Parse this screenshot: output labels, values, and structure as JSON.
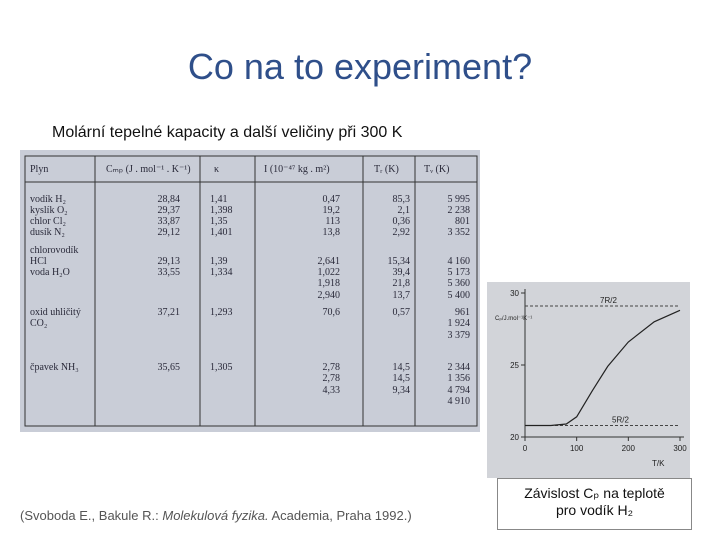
{
  "header": {
    "title": "Co na to experiment?",
    "subtitle": "Molární tepelné kapacity a další veličiny při 300 K"
  },
  "table": {
    "columns": [
      "Plyn",
      "Cₘₚ (J . mol⁻¹ . K⁻¹)",
      "κ",
      "I (10⁻⁴⁷ kg . m²)",
      "Tᵣ (K)",
      "Tᵥ (K)"
    ],
    "rows": [
      [
        [
          "vodík H₂"
        ],
        "28,84",
        "1,41",
        "0,47",
        "85,3",
        "5 995"
      ],
      [
        [
          "kyslík O₂"
        ],
        "29,37",
        "1,398",
        "19,2",
        "2,1",
        "2 238"
      ],
      [
        [
          "chlor Cl₂"
        ],
        "33,87",
        "1,35",
        "113",
        "0,36",
        "801"
      ],
      [
        [
          "dusík N₂"
        ],
        "29,12",
        "1,401",
        "13,8",
        "2,92",
        "3 352"
      ],
      [
        [
          "chlorovodík",
          "HCl"
        ],
        "29,13",
        "1,39",
        "2,641",
        "15,34",
        "4 160"
      ],
      [
        [
          "voda H₂O"
        ],
        "33,55",
        "1,334",
        [
          "1,022",
          "1,918",
          "2,940"
        ],
        [
          "39,4",
          "21,8",
          "13,7"
        ],
        [
          "5 173",
          "5 360",
          "5 400"
        ]
      ],
      [
        [
          "oxid uhličitý",
          "CO₂"
        ],
        "37,21",
        "1,293",
        "70,6",
        "0,57",
        [
          "961",
          "1 924",
          "3 379"
        ]
      ],
      [
        [
          "čpavek NH₃"
        ],
        "35,65",
        "1,305",
        [
          "2,78",
          "2,78",
          "4,33"
        ],
        [
          "14,5",
          "14,5",
          "9,34"
        ],
        [
          "2 344",
          "1 356",
          "4 794",
          "4 910"
        ]
      ]
    ]
  },
  "graph": {
    "x_label": "T/K",
    "y_label": "Cₚ/J.mol⁻¹K⁻¹",
    "xlim": [
      0,
      300
    ],
    "ylim": [
      20,
      30
    ],
    "xticks": [
      0,
      100,
      200,
      300
    ],
    "yticks": [
      20,
      25,
      30
    ],
    "x": [
      0,
      50,
      80,
      100,
      130,
      160,
      200,
      250,
      300
    ],
    "y": [
      20.8,
      20.8,
      20.9,
      21.4,
      23.2,
      24.9,
      26.6,
      28.0,
      28.8
    ],
    "reference_lines": [
      {
        "label": "7R/2",
        "value": 29.1
      },
      {
        "label": "5R/2",
        "value": 20.8
      }
    ]
  },
  "citation": {
    "before": "(Svoboda E., Bakule R.: ",
    "italic": "Molekulová fyzika.",
    "after": " Academia, Praha 1992.)"
  },
  "caption": [
    "Závislost Cₚ na teplotě",
    "pro vodík H₂"
  ]
}
